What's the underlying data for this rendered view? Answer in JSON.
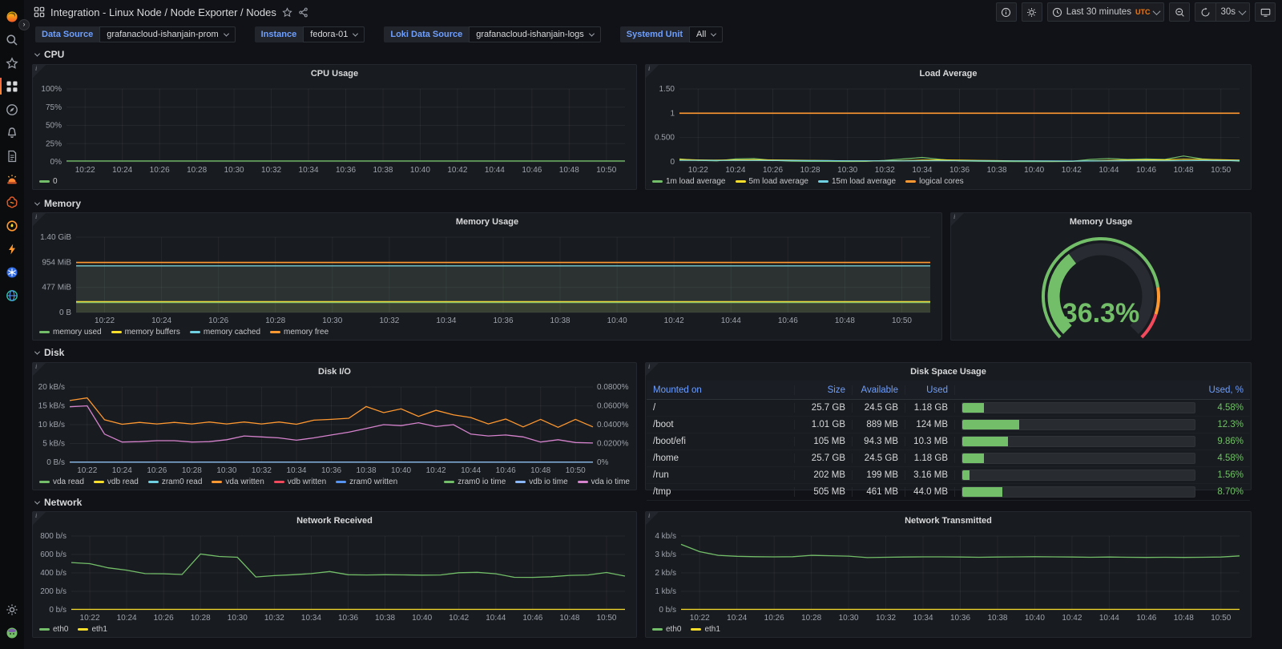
{
  "colors": {
    "green": "#73BF69",
    "yellow": "#FADE2A",
    "cyan": "#6ED0E0",
    "orange": "#FF9830",
    "red": "#F2495C",
    "blue": "#5794F2",
    "slate_blue": "#8AB8FF",
    "magenta": "#D683CE",
    "link_blue": "#6E9FFF",
    "utc_orange": "#EB7B18",
    "grid": "rgba(204,204,220,0.07)",
    "axis_text": "#9da2ab",
    "panel_bg": "#181b1f"
  },
  "sidebar": {
    "icons_top": [
      "grafana-logo",
      "search",
      "starred",
      "dashboards",
      "explore",
      "alerting",
      "document",
      "oncall",
      "machine-learning",
      "incident",
      "performance",
      "kubernetes",
      "synthetics"
    ],
    "icons_bottom": [
      "settings-gear",
      "user-avatar"
    ],
    "active": "dashboards"
  },
  "header": {
    "breadcrumb": "Integration - Linux Node  / Node Exporter / Nodes"
  },
  "toolbar": {
    "time_range": "Last 30 minutes",
    "timezone": "UTC",
    "refresh_interval": "30s"
  },
  "filters": [
    {
      "label": "Data Source",
      "value": "grafanacloud-ishanjain-prom"
    },
    {
      "label": "Instance",
      "value": "fedora-01"
    },
    {
      "label": "Loki Data Source",
      "value": "grafanacloud-ishanjain-logs"
    },
    {
      "label": "Systemd Unit",
      "value": "All"
    }
  ],
  "sections": [
    {
      "title": "CPU"
    },
    {
      "title": "Memory"
    },
    {
      "title": "Disk"
    },
    {
      "title": "Network"
    }
  ],
  "ui": {
    "info_corner": "i"
  },
  "time_labels": [
    "10:22",
    "10:24",
    "10:26",
    "10:28",
    "10:30",
    "10:32",
    "10:34",
    "10:36",
    "10:38",
    "10:40",
    "10:42",
    "10:44",
    "10:46",
    "10:48",
    "10:50"
  ],
  "chart_data": [
    {
      "id": "cpu-usage",
      "type": "line",
      "title": "CPU Usage",
      "xlabel": "time",
      "ylabel": "percent",
      "ylim": [
        0,
        100
      ],
      "grid": true,
      "legend_position": "bottom-left",
      "n_points": 31,
      "pad_left": 38,
      "y_ticks": [
        {
          "v": 0,
          "l": "0%"
        },
        {
          "v": 25,
          "l": "25%"
        },
        {
          "v": 50,
          "l": "50%"
        },
        {
          "v": 75,
          "l": "75%"
        },
        {
          "v": 100,
          "l": "100%"
        }
      ],
      "series": [
        {
          "name": "0",
          "color": "#73BF69",
          "flat": 1.2,
          "width": 1.4
        }
      ]
    },
    {
      "id": "load-average",
      "type": "line",
      "title": "Load Average",
      "ylim": [
        0,
        1.5
      ],
      "grid": true,
      "legend_position": "bottom-left",
      "n_points": 31,
      "pad_left": 38,
      "y_ticks": [
        {
          "v": 0,
          "l": "0"
        },
        {
          "v": 0.5,
          "l": "0.500"
        },
        {
          "v": 1,
          "l": "1"
        },
        {
          "v": 1.5,
          "l": "1.50"
        }
      ],
      "series": [
        {
          "name": "1m load average",
          "color": "#73BF69",
          "width": 1.2,
          "values": [
            0.06,
            0.03,
            0.02,
            0.06,
            0.07,
            0.03,
            0.015,
            0.01,
            0.01,
            0.008,
            0.01,
            0.03,
            0.06,
            0.09,
            0.05,
            0.02,
            0.012,
            0.008,
            0.006,
            0.006,
            0.006,
            0.01,
            0.05,
            0.07,
            0.05,
            0.06,
            0.05,
            0.12,
            0.06,
            0.04,
            0.015
          ]
        },
        {
          "name": "5m load average",
          "color": "#FADE2A",
          "width": 1.2,
          "values": [
            0.05,
            0.04,
            0.035,
            0.04,
            0.045,
            0.04,
            0.035,
            0.03,
            0.025,
            0.02,
            0.018,
            0.02,
            0.025,
            0.035,
            0.04,
            0.035,
            0.03,
            0.025,
            0.02,
            0.018,
            0.015,
            0.015,
            0.02,
            0.03,
            0.035,
            0.04,
            0.04,
            0.055,
            0.05,
            0.045,
            0.035
          ]
        },
        {
          "name": "15m load average",
          "color": "#6ED0E0",
          "width": 1.2,
          "values": [
            0.03,
            0.03,
            0.028,
            0.028,
            0.028,
            0.027,
            0.026,
            0.025,
            0.024,
            0.022,
            0.021,
            0.02,
            0.02,
            0.021,
            0.022,
            0.022,
            0.021,
            0.02,
            0.019,
            0.018,
            0.018,
            0.017,
            0.018,
            0.02,
            0.021,
            0.022,
            0.022,
            0.025,
            0.026,
            0.025,
            0.024
          ]
        },
        {
          "name": "logical cores",
          "color": "#FF9830",
          "flat": 1,
          "width": 1.6
        }
      ]
    },
    {
      "id": "memory-usage",
      "type": "line",
      "title": "Memory Usage",
      "ylim": [
        0,
        1433
      ],
      "ylabel": "MiB",
      "grid": true,
      "legend_position": "bottom-left",
      "n_points": 31,
      "pad_left": 50,
      "y_ticks": [
        {
          "v": 0,
          "l": "0 B"
        },
        {
          "v": 477,
          "l": "477 MiB"
        },
        {
          "v": 954,
          "l": "954 MiB"
        },
        {
          "v": 1433,
          "l": "1.40 GiB"
        }
      ],
      "series": [
        {
          "name": "memory used",
          "color": "#73BF69",
          "flat": 190,
          "width": 1.4,
          "fill": 0.05
        },
        {
          "name": "memory buffers",
          "color": "#FADE2A",
          "flat": 208,
          "width": 1.4,
          "fill": 0.05
        },
        {
          "name": "memory cached",
          "color": "#6ED0E0",
          "flat": 888,
          "width": 1.4,
          "fill": 0.1
        },
        {
          "name": "memory free",
          "color": "#FF9830",
          "flat": 952,
          "width": 1.6,
          "fill": 0.05
        }
      ]
    },
    {
      "id": "memory-gauge",
      "type": "gauge",
      "title": "Memory Usage",
      "value": 36.3,
      "display": "36.3%",
      "min": 0,
      "max": 100,
      "thresholds": [
        {
          "to": 80,
          "color": "#73BF69"
        },
        {
          "to": 90,
          "color": "#FF9830"
        },
        {
          "to": 100,
          "color": "#F2495C"
        }
      ]
    },
    {
      "id": "disk-io",
      "type": "line",
      "title": "Disk I/O",
      "ylim": [
        0,
        20
      ],
      "ylim_right": [
        0,
        0.08
      ],
      "grid": true,
      "legend_position": "bottom-split",
      "n_points": 31,
      "pad_left": 42,
      "pad_right": 50,
      "y_ticks": [
        {
          "v": 0,
          "l": "0 B/s"
        },
        {
          "v": 5,
          "l": "5 kB/s"
        },
        {
          "v": 10,
          "l": "10 kB/s"
        },
        {
          "v": 15,
          "l": "15 kB/s"
        },
        {
          "v": 20,
          "l": "20 kB/s"
        }
      ],
      "y_ticks_right": [
        {
          "v": 0,
          "l": "0%"
        },
        {
          "v": 0.02,
          "l": "0.0200%"
        },
        {
          "v": 0.04,
          "l": "0.0400%"
        },
        {
          "v": 0.06,
          "l": "0.0600%"
        },
        {
          "v": 0.08,
          "l": "0.0800%"
        }
      ],
      "series": [
        {
          "name": "vda read",
          "color": "#73BF69",
          "flat": 0.05,
          "width": 1.2
        },
        {
          "name": "vdb read",
          "color": "#FADE2A",
          "flat": 0.05,
          "width": 1.2
        },
        {
          "name": "zram0 read",
          "color": "#6ED0E0",
          "flat": 0.05,
          "width": 1.2
        },
        {
          "name": "vda written",
          "color": "#FF9830",
          "width": 1.3,
          "values": [
            16.4,
            17.1,
            11.3,
            10.1,
            10.6,
            10.2,
            10.6,
            10.2,
            10.7,
            10.2,
            10.7,
            10.2,
            10.7,
            10.1,
            11.2,
            11.4,
            11.7,
            14.8,
            13.2,
            14.2,
            12.2,
            13.8,
            12.6,
            11.9,
            10.2,
            11.5,
            9.4,
            11.4,
            9.3,
            11.4,
            9.4
          ]
        },
        {
          "name": "vdb written",
          "color": "#F2495C",
          "flat": 0.05,
          "width": 1.2
        },
        {
          "name": "zram0 written",
          "color": "#5794F2",
          "flat": 0.05,
          "width": 1.2
        },
        {
          "name": "zram0 io time",
          "color": "#73BF69",
          "flat": 0.0002,
          "width": 1.2,
          "axis": "right",
          "legend": "right"
        },
        {
          "name": "vdb io time",
          "color": "#8AB8FF",
          "flat": 0.0002,
          "width": 1.2,
          "axis": "right",
          "legend": "right"
        },
        {
          "name": "vda io time",
          "color": "#D683CE",
          "width": 1.3,
          "axis": "right",
          "legend": "right",
          "values": [
            0.059,
            0.06,
            0.03,
            0.0215,
            0.022,
            0.023,
            0.023,
            0.0215,
            0.022,
            0.024,
            0.028,
            0.027,
            0.026,
            0.0235,
            0.026,
            0.029,
            0.032,
            0.036,
            0.04,
            0.039,
            0.042,
            0.038,
            0.04,
            0.03,
            0.028,
            0.029,
            0.027,
            0.0215,
            0.024,
            0.021,
            0.0205
          ]
        }
      ]
    },
    {
      "id": "disk-space",
      "type": "table",
      "title": "Disk Space Usage",
      "columns": [
        "Mounted on",
        "Size",
        "Available",
        "Used",
        "Used, %"
      ],
      "bar_scale_max": 50,
      "rows": [
        {
          "mount": "/",
          "size": "25.7 GB",
          "available": "24.5 GB",
          "used": "1.18 GB",
          "pct": 4.58,
          "pct_label": "4.58%"
        },
        {
          "mount": "/boot",
          "size": "1.01 GB",
          "available": "889 MB",
          "used": "124 MB",
          "pct": 12.3,
          "pct_label": "12.3%"
        },
        {
          "mount": "/boot/efi",
          "size": "105 MB",
          "available": "94.3 MB",
          "used": "10.3 MB",
          "pct": 9.86,
          "pct_label": "9.86%"
        },
        {
          "mount": "/home",
          "size": "25.7 GB",
          "available": "24.5 GB",
          "used": "1.18 GB",
          "pct": 4.58,
          "pct_label": "4.58%"
        },
        {
          "mount": "/run",
          "size": "202 MB",
          "available": "199 MB",
          "used": "3.16 MB",
          "pct": 1.56,
          "pct_label": "1.56%"
        },
        {
          "mount": "/tmp",
          "size": "505 MB",
          "available": "461 MB",
          "used": "44.0 MB",
          "pct": 8.7,
          "pct_label": "8.70%"
        }
      ]
    },
    {
      "id": "network-received",
      "type": "line",
      "title": "Network Received",
      "ylim": [
        0,
        800
      ],
      "grid": true,
      "legend_position": "bottom-left",
      "n_points": 31,
      "pad_left": 44,
      "y_ticks": [
        {
          "v": 0,
          "l": "0 b/s"
        },
        {
          "v": 200,
          "l": "200 b/s"
        },
        {
          "v": 400,
          "l": "400 b/s"
        },
        {
          "v": 600,
          "l": "600 b/s"
        },
        {
          "v": 800,
          "l": "800 b/s"
        }
      ],
      "series": [
        {
          "name": "eth0",
          "color": "#73BF69",
          "width": 1.3,
          "values": [
            512,
            500,
            455,
            430,
            392,
            390,
            383,
            605,
            578,
            570,
            356,
            370,
            380,
            392,
            415,
            380,
            377,
            380,
            378,
            376,
            377,
            402,
            406,
            390,
            352,
            351,
            358,
            373,
            377,
            404,
            365
          ]
        },
        {
          "name": "eth1",
          "color": "#FADE2A",
          "flat": 4,
          "width": 1.2
        }
      ]
    },
    {
      "id": "network-transmitted",
      "type": "line",
      "title": "Network Transmitted",
      "ylim": [
        0,
        4
      ],
      "grid": true,
      "legend_position": "bottom-left",
      "n_points": 31,
      "pad_left": 40,
      "y_ticks": [
        {
          "v": 0,
          "l": "0 b/s"
        },
        {
          "v": 1,
          "l": "1 kb/s"
        },
        {
          "v": 2,
          "l": "2 kb/s"
        },
        {
          "v": 3,
          "l": "3 kb/s"
        },
        {
          "v": 4,
          "l": "4 kb/s"
        }
      ],
      "series": [
        {
          "name": "eth0",
          "color": "#73BF69",
          "width": 1.3,
          "values": [
            3.55,
            3.15,
            2.95,
            2.9,
            2.88,
            2.87,
            2.88,
            2.95,
            2.93,
            2.91,
            2.83,
            2.85,
            2.86,
            2.87,
            2.87,
            2.86,
            2.85,
            2.86,
            2.87,
            2.88,
            2.87,
            2.86,
            2.85,
            2.86,
            2.85,
            2.84,
            2.85,
            2.84,
            2.85,
            2.86,
            2.92
          ]
        },
        {
          "name": "eth1",
          "color": "#FADE2A",
          "flat": 0.02,
          "width": 1.2
        }
      ]
    }
  ]
}
